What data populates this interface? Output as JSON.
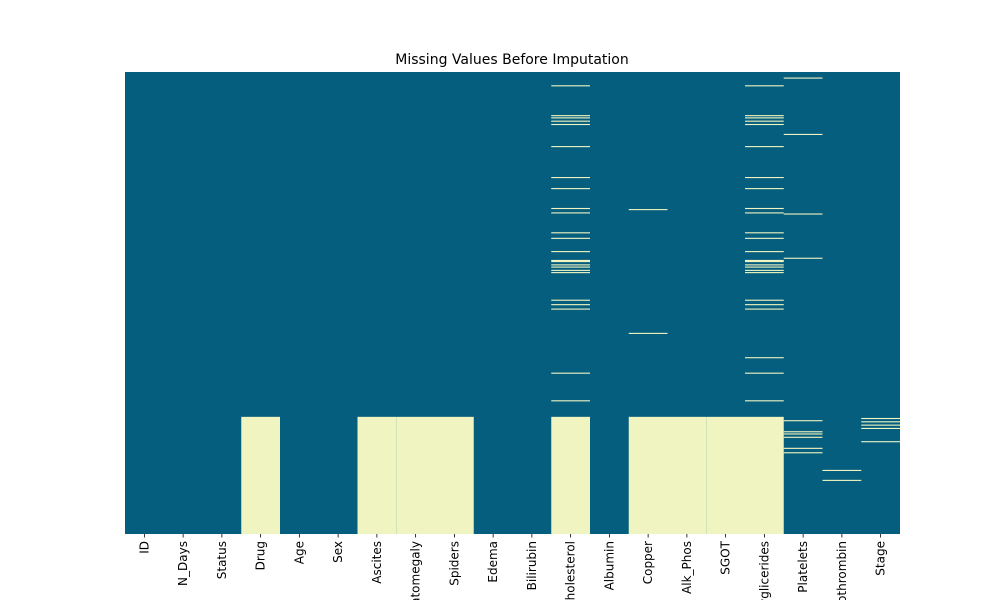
{
  "chart_data": {
    "type": "heatmap",
    "title": "Missing Values Before Imputation",
    "xlabel": "",
    "ylabel": "",
    "columns": [
      "ID",
      "N_Days",
      "Status",
      "Drug",
      "Age",
      "Sex",
      "Ascites",
      "Hepatomegaly",
      "Spiders",
      "Edema",
      "Bilirubin",
      "Cholesterol",
      "Albumin",
      "Copper",
      "Alk_Phos",
      "SGOT",
      "Tryglicerides",
      "Platelets",
      "Prothrombin",
      "Stage"
    ],
    "n_rows": 418,
    "missing_rows": {
      "ID": [],
      "N_Days": [],
      "Status": [],
      "Drug": [
        [
          312,
          417
        ]
      ],
      "Age": [],
      "Sex": [],
      "Ascites": [
        [
          312,
          417
        ]
      ],
      "Hepatomegaly": [
        [
          312,
          417
        ]
      ],
      "Spiders": [
        [
          312,
          417
        ]
      ],
      "Edema": [],
      "Bilirubin": [],
      "Cholesterol": [
        [
          12,
          12
        ],
        [
          39,
          39
        ],
        [
          41,
          41
        ],
        [
          44,
          44
        ],
        [
          47,
          47
        ],
        [
          67,
          67
        ],
        [
          95,
          95
        ],
        [
          105,
          105
        ],
        [
          123,
          123
        ],
        [
          127,
          127
        ],
        [
          145,
          145
        ],
        [
          150,
          150
        ],
        [
          162,
          162
        ],
        [
          170,
          170
        ],
        [
          171,
          171
        ],
        [
          174,
          174
        ],
        [
          176,
          176
        ],
        [
          179,
          179
        ],
        [
          181,
          181
        ],
        [
          206,
          206
        ],
        [
          210,
          210
        ],
        [
          214,
          214
        ],
        [
          272,
          272
        ],
        [
          297,
          297
        ],
        [
          312,
          417
        ]
      ],
      "Albumin": [],
      "Copper": [
        [
          124,
          124
        ],
        [
          236,
          236
        ],
        [
          312,
          417
        ]
      ],
      "Alk_Phos": [
        [
          312,
          417
        ]
      ],
      "SGOT": [
        [
          312,
          417
        ]
      ],
      "Tryglicerides": [
        [
          12,
          12
        ],
        [
          39,
          39
        ],
        [
          41,
          41
        ],
        [
          44,
          44
        ],
        [
          47,
          47
        ],
        [
          67,
          67
        ],
        [
          95,
          95
        ],
        [
          105,
          105
        ],
        [
          123,
          123
        ],
        [
          127,
          127
        ],
        [
          145,
          145
        ],
        [
          150,
          150
        ],
        [
          162,
          162
        ],
        [
          170,
          170
        ],
        [
          171,
          171
        ],
        [
          174,
          174
        ],
        [
          176,
          176
        ],
        [
          179,
          179
        ],
        [
          181,
          181
        ],
        [
          206,
          206
        ],
        [
          210,
          210
        ],
        [
          214,
          214
        ],
        [
          258,
          258
        ],
        [
          272,
          272
        ],
        [
          297,
          297
        ],
        [
          312,
          417
        ]
      ],
      "Platelets": [
        [
          5,
          5
        ],
        [
          56,
          56
        ],
        [
          128,
          128
        ],
        [
          168,
          168
        ],
        [
          315,
          315
        ],
        [
          325,
          325
        ],
        [
          327,
          327
        ],
        [
          330,
          330
        ],
        [
          340,
          340
        ],
        [
          344,
          344
        ]
      ],
      "Prothrombin": [
        [
          360,
          360
        ],
        [
          369,
          369
        ]
      ],
      "Stage": [
        [
          313,
          313
        ],
        [
          316,
          316
        ],
        [
          319,
          319
        ],
        [
          322,
          322
        ],
        [
          334,
          334
        ]
      ]
    },
    "colors": {
      "present": "#065e7e",
      "missing": "#eff4c0"
    },
    "colorbar": false
  }
}
